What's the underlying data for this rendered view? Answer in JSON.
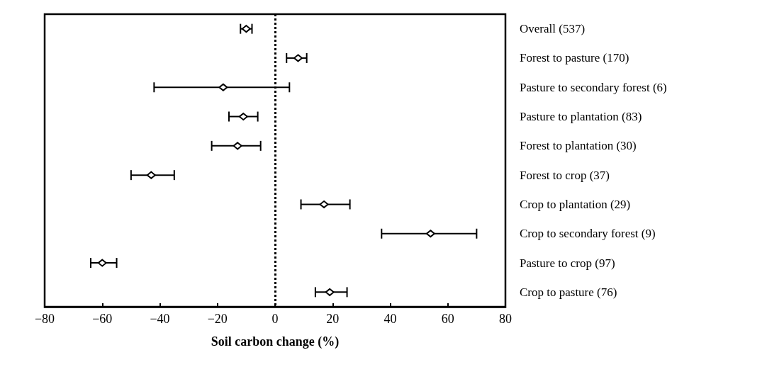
{
  "chart_data": {
    "type": "scatter",
    "orientation": "horizontal",
    "xlabel": "Soil carbon change (%)",
    "categories": [
      "Overall (537)",
      "Forest to pasture (170)",
      "Pasture to secondary forest (6)",
      "Pasture to plantation (83)",
      "Forest to plantation (30)",
      "Forest to crop (37)",
      "Crop to plantation (29)",
      "Crop to secondary forest (9)",
      "Pasture to crop (97)",
      "Crop to pasture (76)"
    ],
    "values": [
      -10,
      8,
      -18,
      -11,
      -13,
      -43,
      17,
      54,
      -60,
      19
    ],
    "errors": [
      [
        -12,
        -8
      ],
      [
        4,
        11
      ],
      [
        -42,
        5
      ],
      [
        -16,
        -6
      ],
      [
        -22,
        -5
      ],
      [
        -50,
        -35
      ],
      [
        9,
        26
      ],
      [
        37,
        70
      ],
      [
        -64,
        -55
      ],
      [
        14,
        25
      ]
    ],
    "color": "#000000",
    "marker": "diamond",
    "xlim": [
      -80,
      80
    ],
    "xticks": [
      -80,
      -60,
      -40,
      -20,
      0,
      20,
      40,
      60,
      80
    ],
    "ref_lines": [
      {
        "axis": "x",
        "value": 0,
        "line_style": "dotted",
        "color": "#000000"
      }
    ],
    "grid": false
  }
}
